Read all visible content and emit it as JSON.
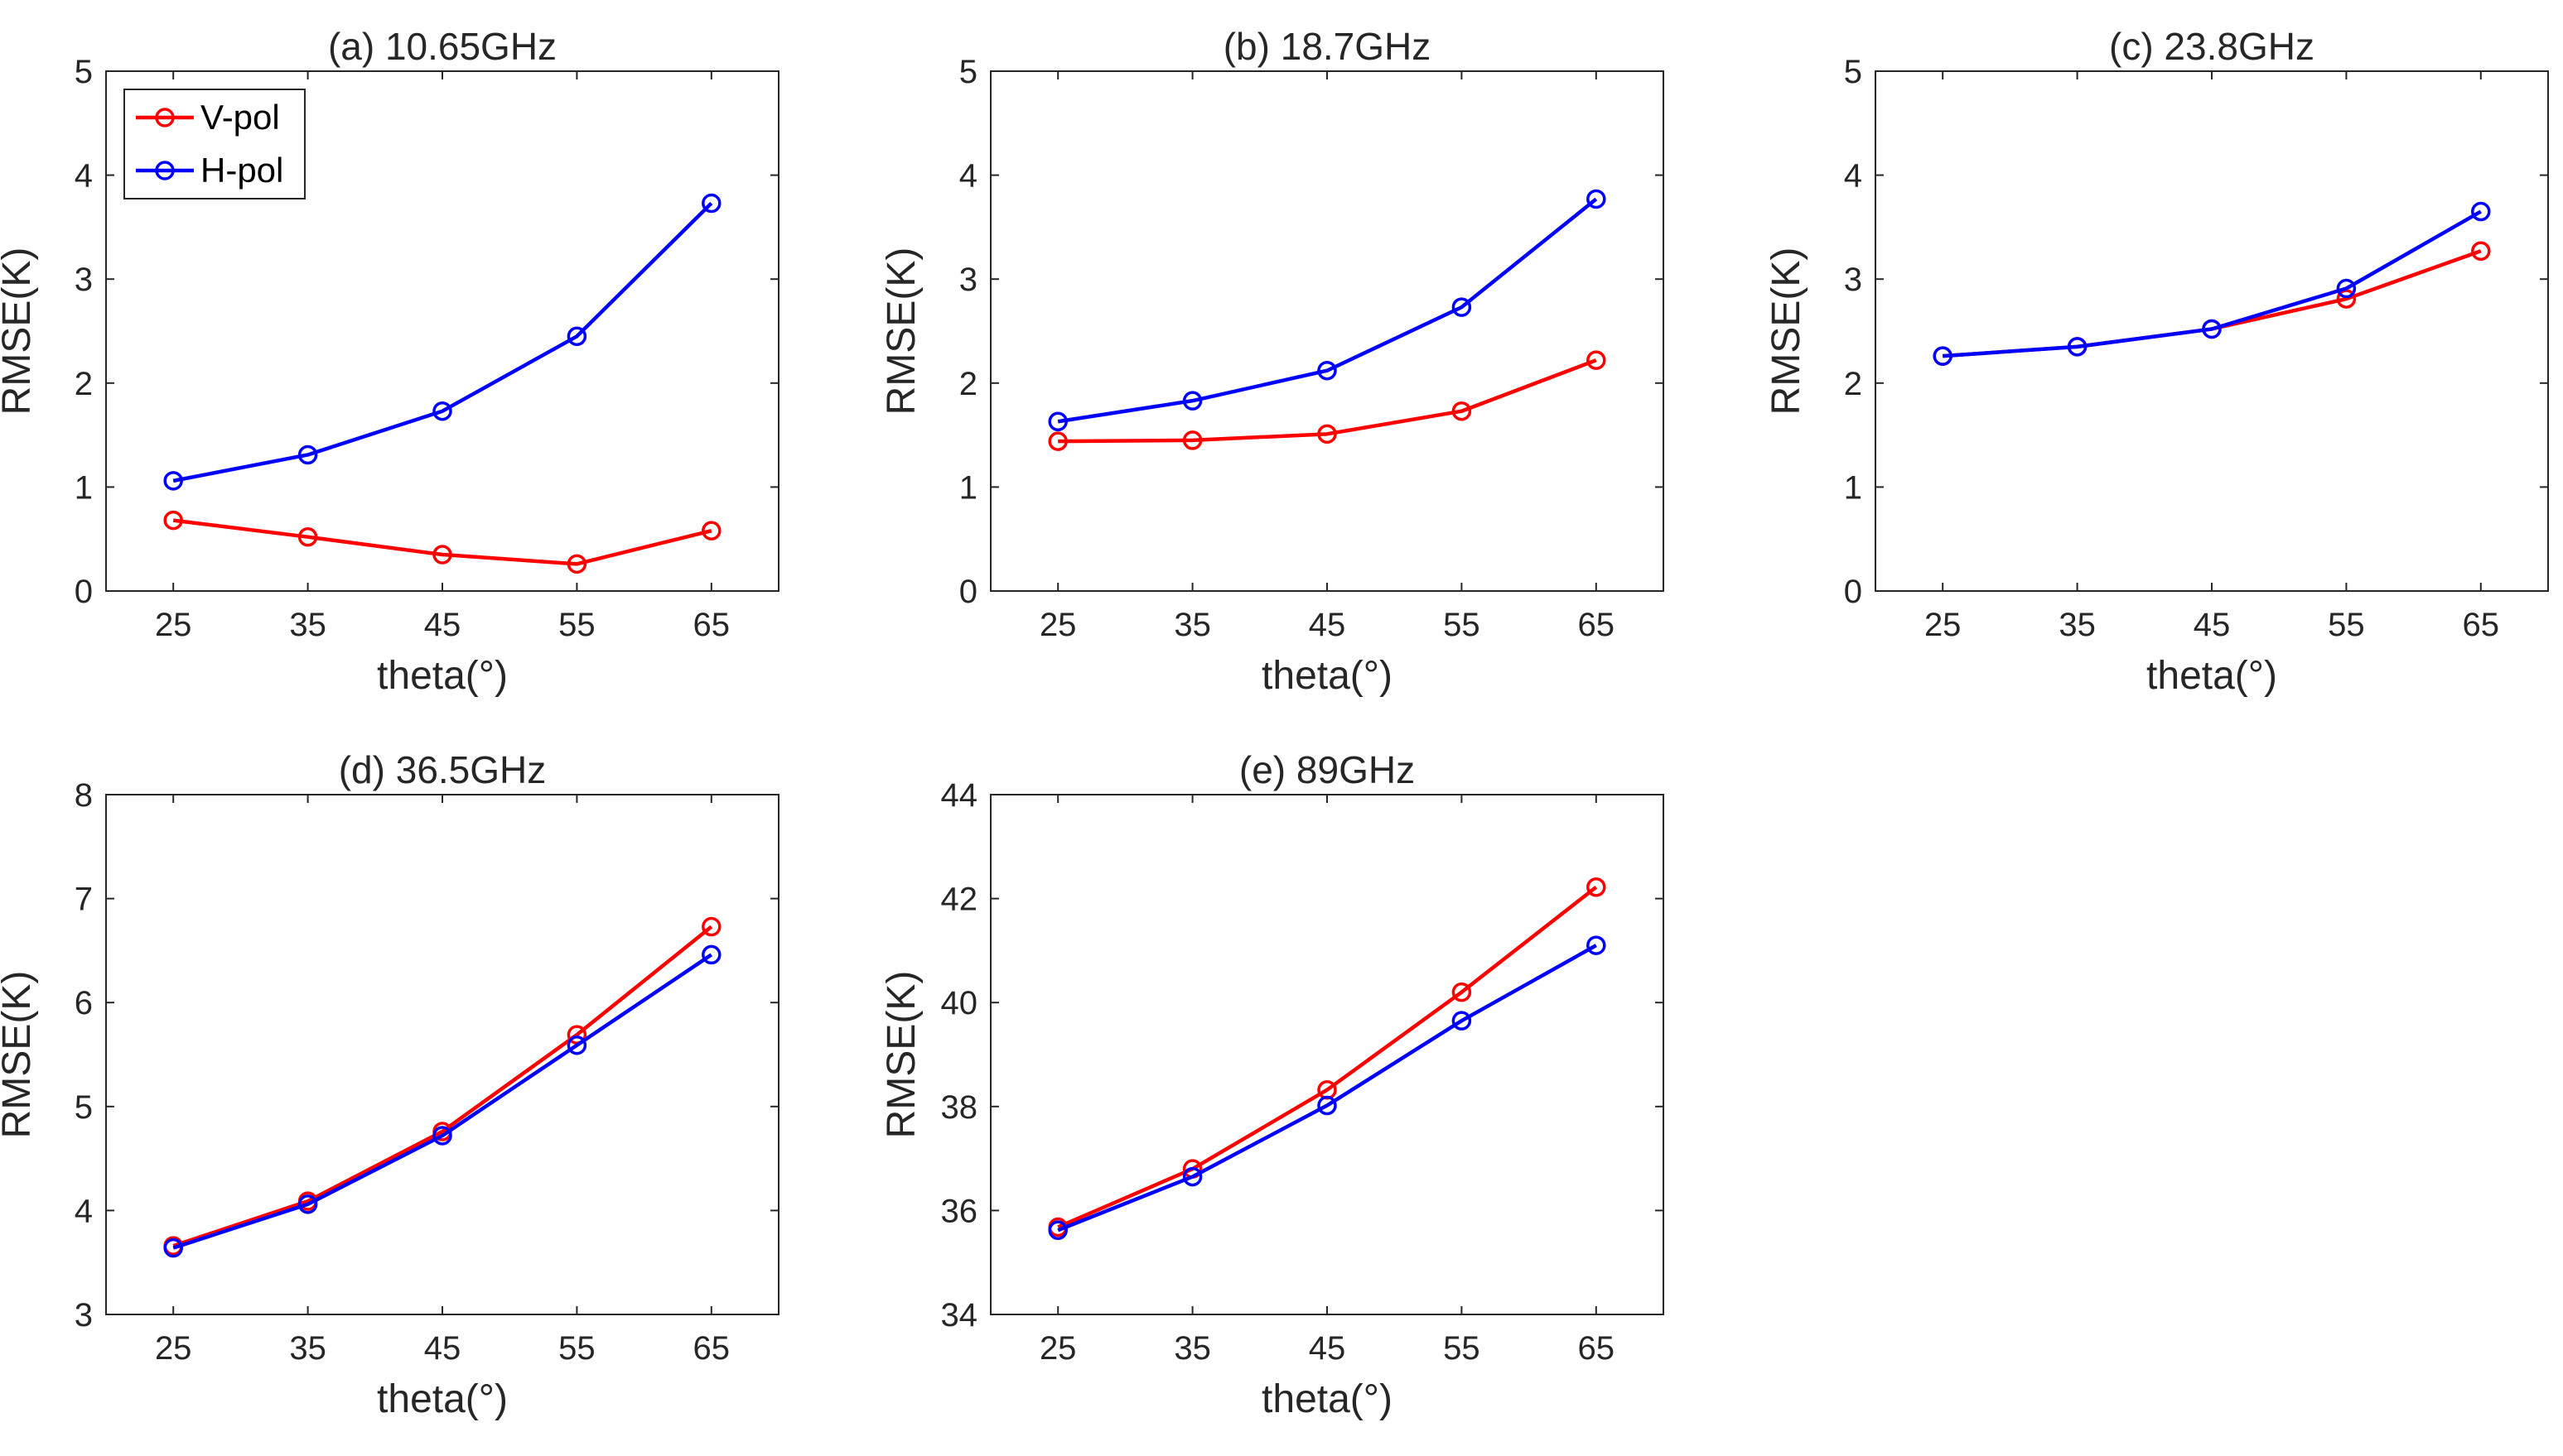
{
  "chart_data": [
    {
      "type": "line",
      "title": "(a) 10.65GHz",
      "xlabel": "theta(°)",
      "ylabel": "RMSE(K)",
      "x": [
        25,
        35,
        45,
        55,
        65
      ],
      "xticks": [
        25,
        35,
        45,
        55,
        65
      ],
      "xlim": [
        20,
        70
      ],
      "ylim": [
        0,
        5
      ],
      "yticks": [
        0,
        1,
        2,
        3,
        4,
        5
      ],
      "grid": false,
      "legend": {
        "placement": "top-left",
        "entries": [
          "V-pol",
          "H-pol"
        ]
      },
      "series": [
        {
          "name": "V-pol",
          "color": "#ff0000",
          "marker": "circle",
          "values": [
            0.68,
            0.52,
            0.35,
            0.26,
            0.58
          ]
        },
        {
          "name": "H-pol",
          "color": "#0000ff",
          "marker": "circle",
          "values": [
            1.06,
            1.31,
            1.73,
            2.45,
            3.73
          ]
        }
      ]
    },
    {
      "type": "line",
      "title": "(b) 18.7GHz",
      "xlabel": "theta(°)",
      "ylabel": "RMSE(K)",
      "x": [
        25,
        35,
        45,
        55,
        65
      ],
      "xticks": [
        25,
        35,
        45,
        55,
        65
      ],
      "xlim": [
        20,
        70
      ],
      "ylim": [
        0,
        5
      ],
      "yticks": [
        0,
        1,
        2,
        3,
        4,
        5
      ],
      "grid": false,
      "series": [
        {
          "color": "#ff0000",
          "marker": "circle",
          "values": [
            1.44,
            1.45,
            1.51,
            1.73,
            2.22
          ]
        },
        {
          "color": "#0000ff",
          "marker": "circle",
          "values": [
            1.63,
            1.83,
            2.12,
            2.73,
            3.77
          ]
        }
      ]
    },
    {
      "type": "line",
      "title": "(c) 23.8GHz",
      "xlabel": "theta(°)",
      "ylabel": "RMSE(K)",
      "x": [
        25,
        35,
        45,
        55,
        65
      ],
      "xticks": [
        25,
        35,
        45,
        55,
        65
      ],
      "xlim": [
        20,
        70
      ],
      "ylim": [
        0,
        5
      ],
      "yticks": [
        0,
        1,
        2,
        3,
        4,
        5
      ],
      "grid": false,
      "series": [
        {
          "color": "#ff0000",
          "marker": "circle",
          "values": [
            2.26,
            2.35,
            2.52,
            2.81,
            3.27
          ]
        },
        {
          "color": "#0000ff",
          "marker": "circle",
          "values": [
            2.26,
            2.35,
            2.52,
            2.91,
            3.65
          ]
        }
      ]
    },
    {
      "type": "line",
      "title": "(d) 36.5GHz",
      "xlabel": "theta(°)",
      "ylabel": "RMSE(K)",
      "x": [
        25,
        35,
        45,
        55,
        65
      ],
      "xticks": [
        25,
        35,
        45,
        55,
        65
      ],
      "xlim": [
        20,
        70
      ],
      "ylim": [
        3,
        8
      ],
      "yticks": [
        3,
        4,
        5,
        6,
        7,
        8
      ],
      "grid": false,
      "series": [
        {
          "color": "#ff0000",
          "marker": "circle",
          "values": [
            3.66,
            4.09,
            4.76,
            5.69,
            6.73
          ]
        },
        {
          "color": "#0000ff",
          "marker": "circle",
          "values": [
            3.64,
            4.06,
            4.72,
            5.59,
            6.46
          ]
        }
      ]
    },
    {
      "type": "line",
      "title": "(e) 89GHz",
      "xlabel": "theta(°)",
      "ylabel": "RMSE(K)",
      "x": [
        25,
        35,
        45,
        55,
        65
      ],
      "xticks": [
        25,
        35,
        45,
        55,
        65
      ],
      "xlim": [
        20,
        70
      ],
      "ylim": [
        34,
        44
      ],
      "yticks": [
        34,
        36,
        38,
        40,
        42,
        44
      ],
      "grid": false,
      "series": [
        {
          "color": "#ff0000",
          "marker": "circle",
          "values": [
            35.68,
            36.8,
            38.32,
            40.2,
            42.22
          ]
        },
        {
          "color": "#0000ff",
          "marker": "circle",
          "values": [
            35.62,
            36.65,
            38.02,
            39.65,
            41.1
          ]
        }
      ]
    }
  ]
}
